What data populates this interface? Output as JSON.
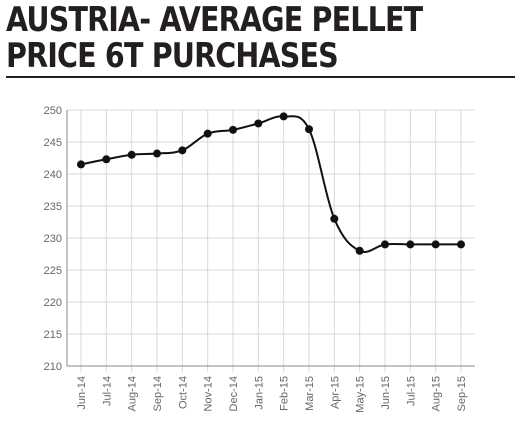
{
  "title": {
    "line1": "AUSTRIA- AVERAGE PELLET",
    "line2": "PRICE 6T PURCHASES"
  },
  "chart_data": {
    "type": "line",
    "title": "AUSTRIA- AVERAGE PELLET PRICE 6T PURCHASES",
    "xlabel": "",
    "ylabel": "",
    "categories": [
      "Jun-14",
      "Jul-14",
      "Aug-14",
      "Sep-14",
      "Oct-14",
      "Nov-14",
      "Dec-14",
      "Jan-15",
      "Feb-15",
      "Mar-15",
      "Apr-15",
      "May-15",
      "Jun-15",
      "Jul-15",
      "Aug-15",
      "Sep-15"
    ],
    "series": [
      {
        "values": [
          241.5,
          242.3,
          243.0,
          243.2,
          243.7,
          246.3,
          246.9,
          247.9,
          249.0,
          247.0,
          233.0,
          228.0,
          229.0,
          229.0,
          229.0,
          229.0
        ]
      }
    ],
    "ylim": [
      210,
      250
    ],
    "yticks": [
      "210",
      "215",
      "220",
      "225",
      "230",
      "235",
      "240",
      "245",
      "250"
    ],
    "grid": true,
    "legend": "none",
    "colors": {
      "line": "#111111",
      "grid": "#d9d9d9",
      "axis": "#888888",
      "tick_text": "#666666",
      "title": "#231f20"
    }
  }
}
